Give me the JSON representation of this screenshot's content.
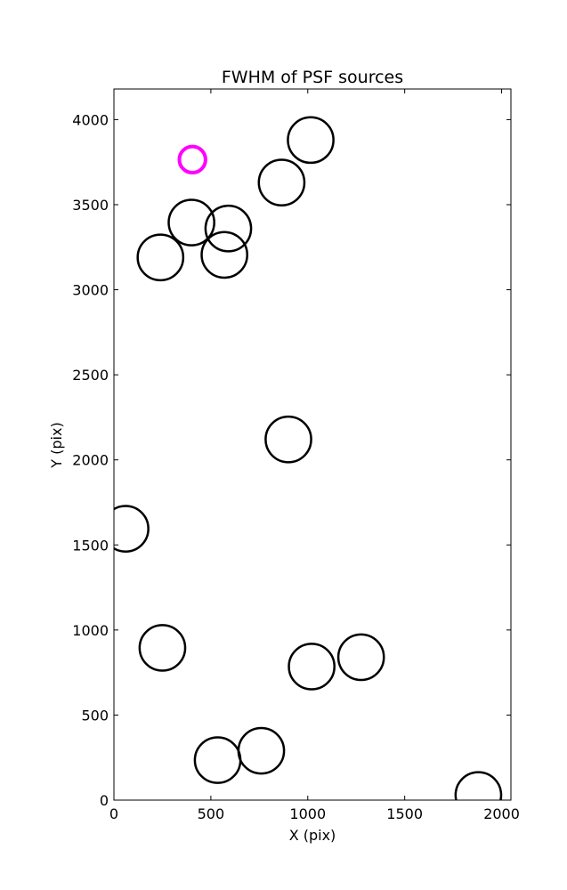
{
  "chart_data": {
    "type": "scatter",
    "title": "FWHM of PSF sources",
    "xlabel": "X (pix)",
    "ylabel": "Y (pix)",
    "xlim": [
      0,
      2048
    ],
    "ylim": [
      0,
      4180
    ],
    "xticks": [
      0,
      500,
      1000,
      1500,
      2000
    ],
    "yticks": [
      0,
      500,
      1000,
      1500,
      2000,
      2500,
      3000,
      3500,
      4000
    ],
    "grid": false,
    "marker": "circle",
    "default_color": "#000000",
    "highlight_color": "#ff00ff",
    "sources": [
      {
        "x": 1015,
        "y": 3880,
        "fwhm": 235,
        "highlight": false
      },
      {
        "x": 865,
        "y": 3630,
        "fwhm": 235,
        "highlight": false
      },
      {
        "x": 590,
        "y": 3360,
        "fwhm": 235,
        "highlight": false
      },
      {
        "x": 400,
        "y": 3395,
        "fwhm": 235,
        "highlight": false
      },
      {
        "x": 570,
        "y": 3205,
        "fwhm": 235,
        "highlight": false
      },
      {
        "x": 240,
        "y": 3190,
        "fwhm": 235,
        "highlight": false
      },
      {
        "x": 405,
        "y": 3765,
        "fwhm": 135,
        "highlight": true
      },
      {
        "x": 900,
        "y": 2120,
        "fwhm": 235,
        "highlight": false
      },
      {
        "x": 60,
        "y": 1595,
        "fwhm": 235,
        "highlight": false
      },
      {
        "x": 250,
        "y": 895,
        "fwhm": 235,
        "highlight": false
      },
      {
        "x": 1020,
        "y": 785,
        "fwhm": 235,
        "highlight": false
      },
      {
        "x": 1275,
        "y": 840,
        "fwhm": 235,
        "highlight": false
      },
      {
        "x": 535,
        "y": 235,
        "fwhm": 235,
        "highlight": false
      },
      {
        "x": 760,
        "y": 290,
        "fwhm": 235,
        "highlight": false
      },
      {
        "x": 1880,
        "y": 30,
        "fwhm": 235,
        "highlight": false
      }
    ]
  }
}
